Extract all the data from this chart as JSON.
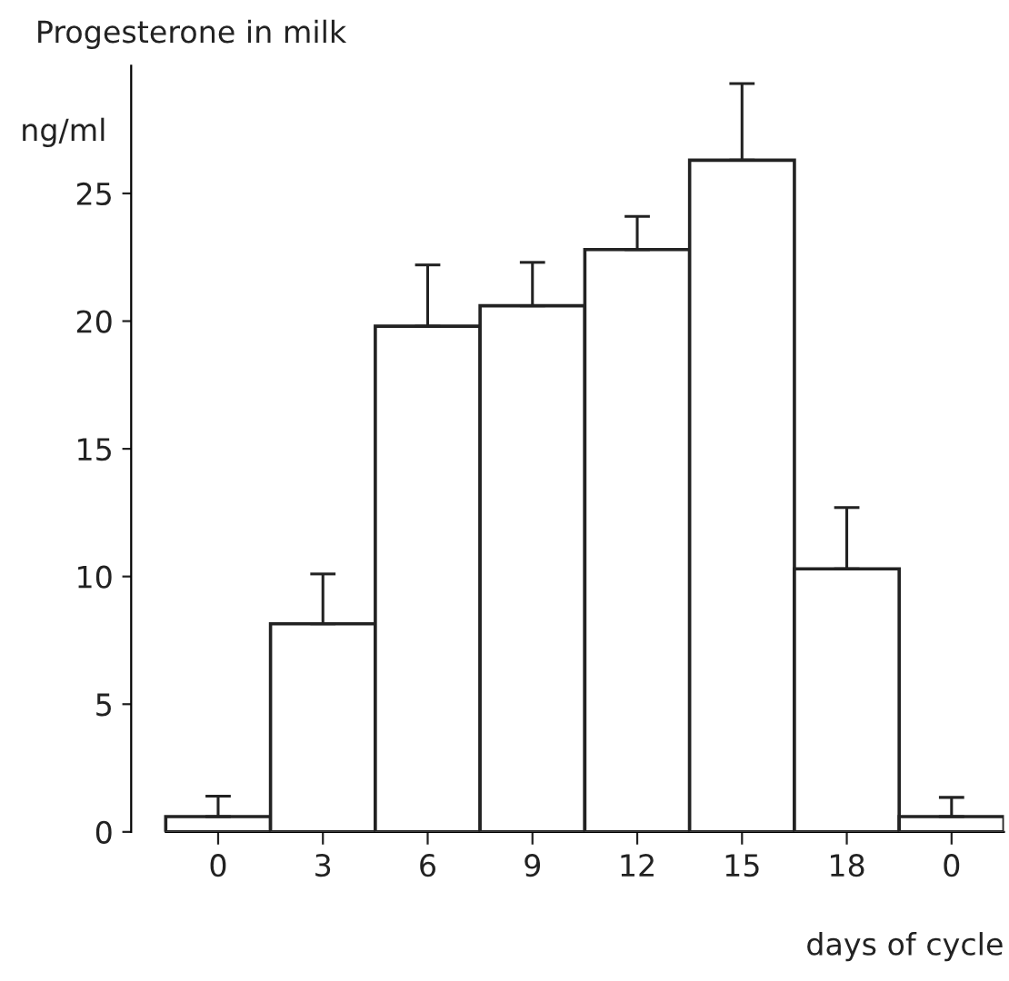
{
  "chart_data": {
    "type": "bar",
    "title": "Progesterone in milk",
    "ylabel": "ng/ml",
    "xlabel": "days of cycle",
    "categories": [
      "0",
      "3",
      "6",
      "9",
      "12",
      "15",
      "18",
      "0"
    ],
    "values": [
      0.6,
      8.15,
      19.8,
      20.6,
      22.8,
      26.3,
      10.3,
      0.6
    ],
    "errors": [
      [
        0.6,
        1.4
      ],
      [
        8.15,
        10.1
      ],
      [
        19.8,
        22.2
      ],
      [
        20.6,
        22.3
      ],
      [
        22.8,
        24.1
      ],
      [
        26.3,
        29.3
      ],
      [
        10.3,
        12.7
      ],
      [
        0.6,
        1.35
      ]
    ],
    "color": "#ffffff",
    "ylim": [
      0,
      30
    ],
    "yticks": [
      0,
      5,
      10,
      15,
      20,
      25
    ],
    "grid": false
  }
}
